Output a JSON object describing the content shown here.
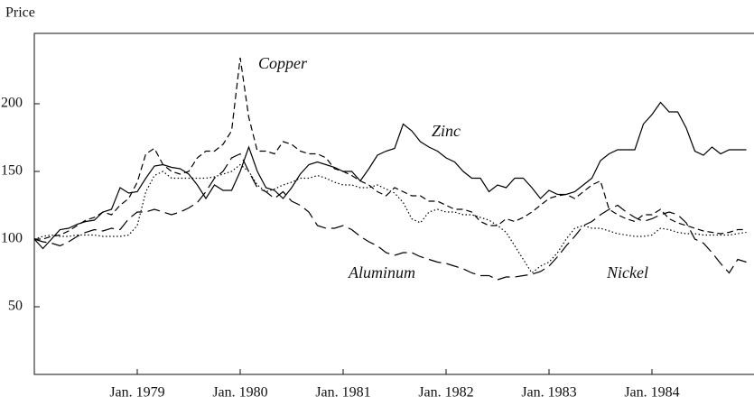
{
  "chart_data": {
    "type": "line",
    "y_label": "Price",
    "x": [
      "1978-01",
      "1978-02",
      "1978-03",
      "1978-04",
      "1978-05",
      "1978-06",
      "1978-07",
      "1978-08",
      "1978-09",
      "1978-10",
      "1978-11",
      "1978-12",
      "1979-01",
      "1979-02",
      "1979-03",
      "1979-04",
      "1979-05",
      "1979-06",
      "1979-07",
      "1979-08",
      "1979-09",
      "1979-10",
      "1979-11",
      "1979-12",
      "1980-01",
      "1980-02",
      "1980-03",
      "1980-04",
      "1980-05",
      "1980-06",
      "1980-07",
      "1980-08",
      "1980-09",
      "1980-10",
      "1980-11",
      "1980-12",
      "1981-01",
      "1981-02",
      "1981-03",
      "1981-04",
      "1981-05",
      "1981-06",
      "1981-07",
      "1981-08",
      "1981-09",
      "1981-10",
      "1981-11",
      "1981-12",
      "1982-01",
      "1982-02",
      "1982-03",
      "1982-04",
      "1982-05",
      "1982-06",
      "1982-07",
      "1982-08",
      "1982-09",
      "1982-10",
      "1982-11",
      "1982-12",
      "1983-01",
      "1983-02",
      "1983-03",
      "1983-04",
      "1983-05",
      "1983-06",
      "1983-07",
      "1983-08",
      "1983-09",
      "1983-10",
      "1983-11",
      "1983-12",
      "1984-01",
      "1984-02",
      "1984-03",
      "1984-04",
      "1984-05",
      "1984-06",
      "1984-07",
      "1984-08",
      "1984-09",
      "1984-10",
      "1984-11",
      "1984-12"
    ],
    "xlim": [
      "1978-01",
      "1985-01"
    ],
    "xticks": [
      {
        "value": "1979-01",
        "label": "Jan. 1979"
      },
      {
        "value": "1980-01",
        "label": "Jan. 1980"
      },
      {
        "value": "1981-01",
        "label": "Jan. 1981"
      },
      {
        "value": "1982-01",
        "label": "Jan. 1982"
      },
      {
        "value": "1983-01",
        "label": "Jan. 1983"
      },
      {
        "value": "1984-01",
        "label": "Jan. 1984"
      }
    ],
    "ylim": [
      0,
      252
    ],
    "yticks": [
      50,
      100,
      150,
      200
    ],
    "series": [
      {
        "name": "Zinc",
        "color": "#000000",
        "line_style": "solid",
        "values": [
          100,
          93,
          100,
          107,
          108,
          111,
          113,
          114,
          120,
          122,
          138,
          134,
          135,
          145,
          154,
          155,
          153,
          152,
          148,
          140,
          130,
          140,
          136,
          136,
          150,
          168,
          150,
          138,
          136,
          130,
          138,
          148,
          155,
          157,
          155,
          153,
          150,
          150,
          143,
          152,
          162,
          165,
          167,
          185,
          180,
          172,
          168,
          165,
          160,
          157,
          150,
          145,
          145,
          135,
          140,
          138,
          145,
          145,
          138,
          130,
          136,
          133,
          133,
          135,
          140,
          145,
          158,
          163,
          166,
          166,
          166,
          185,
          192,
          201,
          194,
          194,
          182,
          165,
          162,
          168,
          163,
          166,
          166,
          166
        ]
      },
      {
        "name": "Copper",
        "color": "#000000",
        "line_style": "dashed",
        "values": [
          100,
          100,
          102,
          103,
          106,
          110,
          114,
          116,
          120,
          118,
          125,
          130,
          142,
          163,
          167,
          155,
          150,
          148,
          150,
          160,
          165,
          165,
          170,
          180,
          234,
          190,
          165,
          165,
          163,
          172,
          170,
          165,
          163,
          163,
          160,
          152,
          150,
          147,
          143,
          140,
          135,
          132,
          138,
          135,
          132,
          132,
          128,
          128,
          125,
          122,
          122,
          120,
          113,
          110,
          110,
          115,
          113,
          116,
          120,
          125,
          130,
          132,
          133,
          130,
          135,
          140,
          143,
          122,
          118,
          115,
          113,
          118,
          118,
          122,
          115,
          112,
          110,
          108,
          106,
          105,
          104,
          105,
          107,
          107
        ]
      },
      {
        "name": "Nickel",
        "color": "#000000",
        "line_style": "dotted",
        "values": [
          100,
          102,
          103,
          102,
          102,
          103,
          103,
          103,
          102,
          102,
          102,
          103,
          110,
          135,
          147,
          150,
          145,
          145,
          145,
          145,
          145,
          146,
          148,
          150,
          155,
          150,
          140,
          135,
          137,
          140,
          142,
          145,
          145,
          147,
          145,
          142,
          140,
          140,
          138,
          138,
          140,
          137,
          134,
          127,
          115,
          112,
          120,
          122,
          120,
          120,
          118,
          118,
          116,
          114,
          110,
          105,
          95,
          85,
          75,
          80,
          83,
          90,
          100,
          108,
          110,
          108,
          108,
          106,
          104,
          103,
          102,
          102,
          103,
          108,
          107,
          105,
          104,
          104,
          103,
          103,
          103,
          103,
          104,
          105
        ]
      },
      {
        "name": "Aluminum",
        "color": "#000000",
        "line_style": "long-dashed",
        "values": [
          100,
          98,
          97,
          95,
          98,
          102,
          105,
          107,
          106,
          108,
          107,
          115,
          120,
          120,
          122,
          120,
          118,
          120,
          123,
          127,
          135,
          145,
          150,
          160,
          163,
          150,
          138,
          135,
          130,
          135,
          128,
          125,
          120,
          110,
          108,
          108,
          110,
          107,
          102,
          98,
          95,
          90,
          88,
          90,
          90,
          87,
          85,
          83,
          82,
          80,
          78,
          75,
          73,
          73,
          70,
          72,
          72,
          73,
          74,
          76,
          80,
          87,
          95,
          102,
          110,
          113,
          118,
          122,
          125,
          120,
          116,
          113,
          115,
          118,
          120,
          118,
          112,
          100,
          97,
          90,
          82,
          75,
          85,
          83
        ]
      }
    ]
  }
}
